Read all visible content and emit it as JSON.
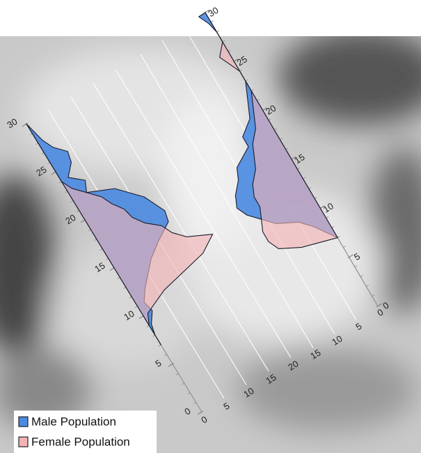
{
  "chart_data": {
    "type": "area",
    "x": [
      7,
      8,
      9,
      10,
      11,
      12,
      13,
      14,
      15,
      16,
      17,
      18,
      19,
      20,
      21,
      22,
      23,
      24,
      25,
      26,
      27,
      28,
      29,
      30
    ],
    "xlim": [
      0,
      30
    ],
    "xticks": [
      0,
      5,
      10,
      15,
      20,
      25,
      30
    ],
    "ylim": [
      0,
      20
    ],
    "yticks": [
      0,
      5,
      10,
      15,
      20
    ],
    "y2ticks": [
      0,
      5,
      10,
      15
    ],
    "grid": true,
    "series": [
      {
        "name": "Male Population",
        "color": "#4a8ae0",
        "values": [
          0,
          0,
          0.5,
          2,
          1.5,
          3,
          5,
          7,
          10,
          13.5,
          14,
          13,
          12,
          10,
          8,
          3,
          4,
          1.5,
          3.5,
          4,
          2,
          1,
          0.5,
          0
        ],
        "values2": [
          0,
          1.5,
          3,
          5,
          9,
          11,
          13,
          14,
          13,
          11,
          10,
          6,
          6,
          3,
          2,
          1,
          0,
          0,
          0,
          0,
          0,
          0,
          0.5,
          1.5
        ]
      },
      {
        "name": "Female Population",
        "color": "#f3b3b6",
        "values": [
          0,
          0,
          0,
          1,
          6,
          16,
          19.5,
          15,
          13,
          12,
          9.5,
          8,
          7.5,
          6,
          5,
          3,
          1,
          0,
          0,
          0,
          0,
          0,
          0,
          0
        ],
        "values2": [
          0,
          7,
          11,
          12,
          12,
          11,
          10,
          10,
          9,
          7,
          6,
          5,
          3,
          2,
          1,
          0,
          0,
          0,
          1,
          2,
          0,
          0,
          0,
          0
        ]
      }
    ]
  }
}
